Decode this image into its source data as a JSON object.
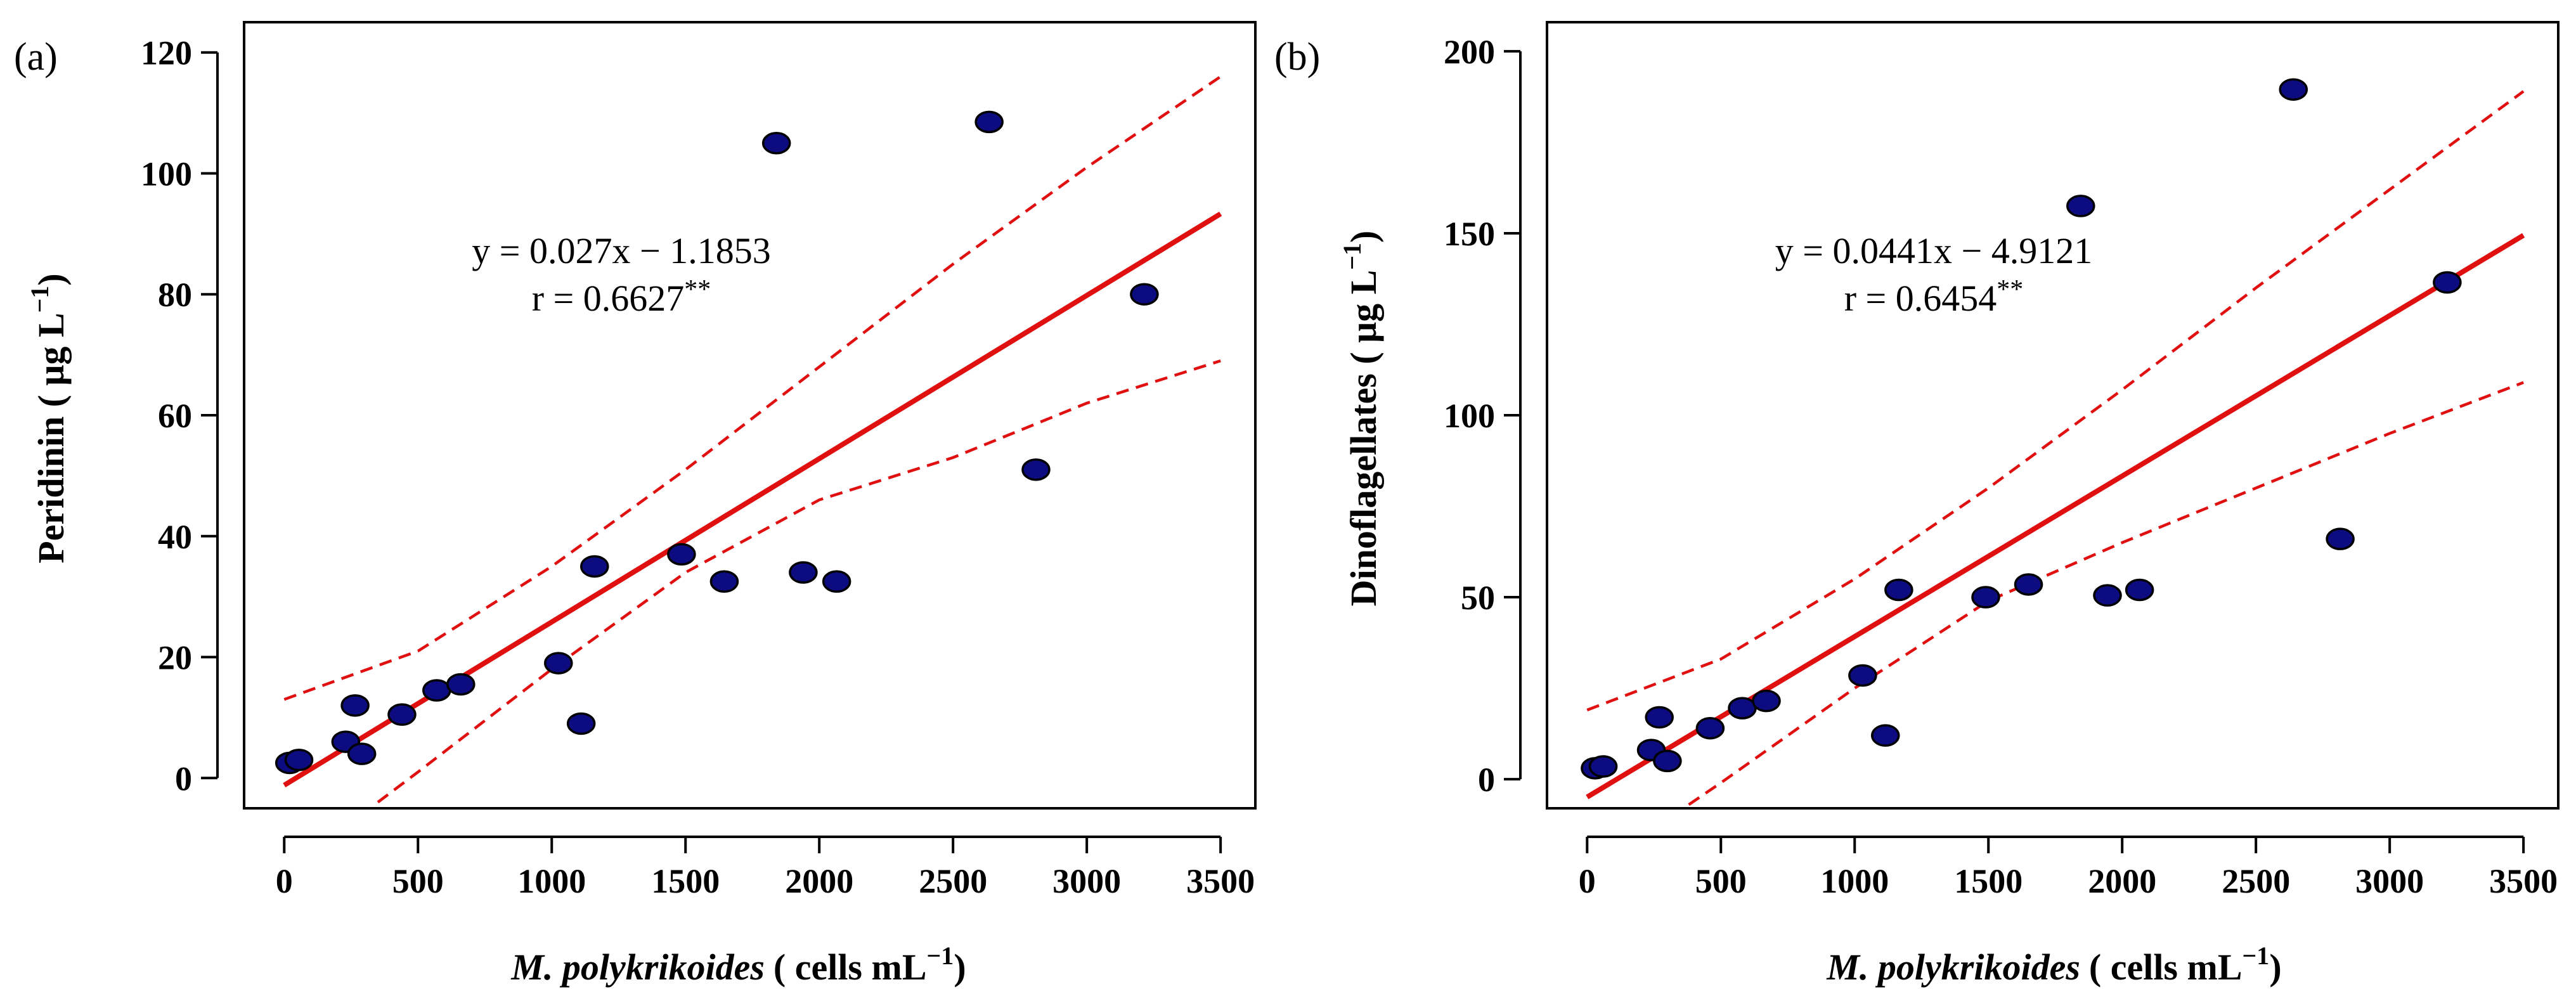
{
  "chart_data": [
    {
      "type": "scatter",
      "panel_label": "(a)",
      "xlabel_italic": "M. polykrikoides",
      "xlabel_unit": "( cells mL",
      "xlabel_sup": "−1",
      "xlabel_close": ")",
      "ylabel_main": "Peridinin ( μg L",
      "ylabel_sup": "−1",
      "ylabel_close": ")",
      "xlim": [
        -150,
        3630
      ],
      "ylim": [
        -5,
        125
      ],
      "xticks": [
        0,
        500,
        1000,
        1500,
        2000,
        2500,
        3000,
        3500
      ],
      "yticks": [
        0,
        20,
        40,
        60,
        80,
        100,
        120
      ],
      "equation": "y = 0.027x − 1.1853",
      "r_text": "r = 0.6627",
      "r_stars": "**",
      "fit": {
        "slope": 0.027,
        "intercept": -1.1853,
        "x_range": [
          0,
          3500
        ]
      },
      "ci_upper": [
        [
          0,
          13
        ],
        [
          500,
          21
        ],
        [
          1000,
          35
        ],
        [
          1500,
          51
        ],
        [
          2000,
          68
        ],
        [
          2500,
          85
        ],
        [
          3000,
          101
        ],
        [
          3500,
          116
        ]
      ],
      "ci_lower": [
        [
          350,
          -4
        ],
        [
          500,
          1
        ],
        [
          1000,
          18
        ],
        [
          1500,
          34
        ],
        [
          2000,
          46
        ],
        [
          2500,
          53
        ],
        [
          3000,
          62
        ],
        [
          3500,
          69
        ]
      ],
      "points": [
        [
          20,
          2.5
        ],
        [
          55,
          3
        ],
        [
          230,
          6
        ],
        [
          265,
          12
        ],
        [
          290,
          4
        ],
        [
          440,
          10.5
        ],
        [
          570,
          14.5
        ],
        [
          660,
          15.5
        ],
        [
          1025,
          19
        ],
        [
          1110,
          9
        ],
        [
          1160,
          35
        ],
        [
          1485,
          37
        ],
        [
          1645,
          32.5
        ],
        [
          1840,
          105
        ],
        [
          1940,
          34
        ],
        [
          2065,
          32.5
        ],
        [
          2635,
          108.5
        ],
        [
          2810,
          51
        ],
        [
          3215,
          80
        ]
      ]
    },
    {
      "type": "scatter",
      "panel_label": "(b)",
      "xlabel_italic": "M. polykrikoides",
      "xlabel_unit": "( cells mL",
      "xlabel_sup": "−1",
      "xlabel_close": ")",
      "ylabel_main": "Dinoflagellates ( μg L",
      "ylabel_sup": "−1",
      "ylabel_close": ")",
      "xlim": [
        -150,
        3630
      ],
      "ylim": [
        -8,
        208
      ],
      "xticks": [
        0,
        500,
        1000,
        1500,
        2000,
        2500,
        3000,
        3500
      ],
      "yticks": [
        0,
        50,
        100,
        150,
        200
      ],
      "equation": "y = 0.0441x − 4.9121",
      "r_text": "r = 0.6454",
      "r_stars": "**",
      "fit": {
        "slope": 0.0441,
        "intercept": -4.9121,
        "x_range": [
          0,
          3500
        ]
      },
      "ci_upper": [
        [
          0,
          19
        ],
        [
          500,
          33
        ],
        [
          1000,
          55
        ],
        [
          1500,
          80
        ],
        [
          2000,
          107
        ],
        [
          2500,
          135
        ],
        [
          3000,
          162
        ],
        [
          3500,
          189
        ]
      ],
      "ci_lower": [
        [
          380,
          -7
        ],
        [
          500,
          -1
        ],
        [
          1000,
          25
        ],
        [
          1500,
          49
        ],
        [
          2000,
          65
        ],
        [
          2500,
          80
        ],
        [
          3000,
          95
        ],
        [
          3500,
          109
        ]
      ],
      "points": [
        [
          30,
          3
        ],
        [
          60,
          3.5
        ],
        [
          240,
          8
        ],
        [
          270,
          17
        ],
        [
          300,
          5
        ],
        [
          460,
          14
        ],
        [
          580,
          19.5
        ],
        [
          670,
          21.5
        ],
        [
          1030,
          28.5
        ],
        [
          1115,
          12
        ],
        [
          1165,
          52
        ],
        [
          1490,
          50
        ],
        [
          1650,
          53.5
        ],
        [
          1845,
          157.5
        ],
        [
          1945,
          50.5
        ],
        [
          2065,
          52
        ],
        [
          2640,
          189.5
        ],
        [
          2815,
          66
        ],
        [
          3215,
          136.5
        ]
      ]
    }
  ]
}
